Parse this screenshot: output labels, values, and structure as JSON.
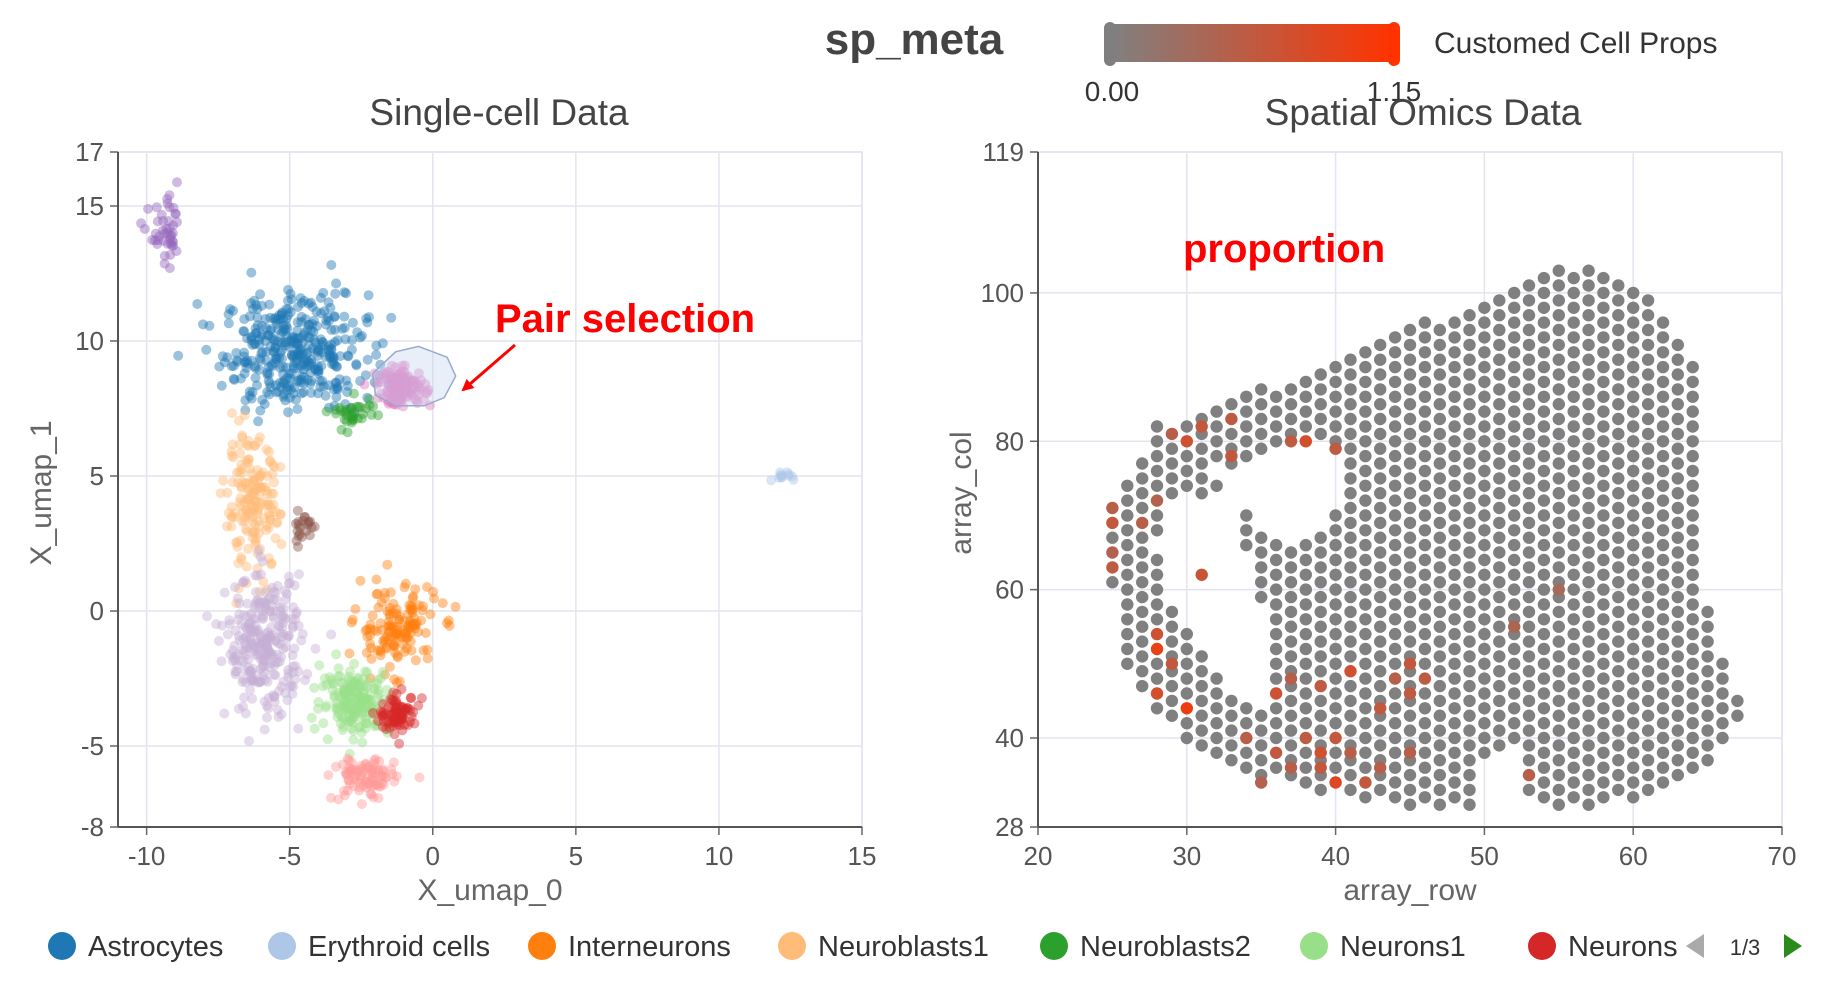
{
  "header": {
    "title": "sp_meta",
    "colorbar": {
      "min_label": "0.00",
      "max_label": "1.15",
      "label": "Customed Cell Props",
      "color_low": "#808080",
      "color_high": "#ff3300"
    }
  },
  "annotations": {
    "pair_selection": "Pair selection",
    "proportion": "proportion",
    "color": "#ff0000"
  },
  "legend": {
    "items": [
      {
        "label": "Astrocytes",
        "color": "#1f77b4"
      },
      {
        "label": "Erythroid cells",
        "color": "#aec7e8"
      },
      {
        "label": "Interneurons",
        "color": "#ff7f0e"
      },
      {
        "label": "Neuroblasts1",
        "color": "#ffbb78"
      },
      {
        "label": "Neuroblasts2",
        "color": "#2ca02c"
      },
      {
        "label": "Neurons1",
        "color": "#98df8a"
      },
      {
        "label": "Neurons",
        "color": "#d62728"
      }
    ],
    "page": "1/3",
    "prev_icon": "triangle-left-icon",
    "next_icon": "triangle-right-icon"
  },
  "chart_data": [
    {
      "type": "scatter",
      "title": "Single-cell Data",
      "xlabel": "X_umap_0",
      "ylabel": "X_umap_1",
      "xlim": [
        -11,
        15
      ],
      "ylim": [
        -8,
        17
      ],
      "xticks": [
        "-10",
        "-5",
        "0",
        "5",
        "10",
        "15"
      ],
      "yticks": [
        "-8",
        "-5",
        "0",
        "5",
        "10",
        "15",
        "17"
      ],
      "grid": true,
      "clusters": [
        {
          "name": "Astrocytes",
          "color": "#1f77b4",
          "center": [
            -4.8,
            9.6
          ],
          "spread": [
            2.1,
            1.8
          ],
          "n": 380
        },
        {
          "name": "Erythroid cells",
          "color": "#aec7e8",
          "center": [
            12.2,
            5.0
          ],
          "spread": [
            0.25,
            0.2
          ],
          "n": 12
        },
        {
          "name": "Interneurons",
          "color": "#ff7f0e",
          "center": [
            -1.3,
            -0.6
          ],
          "spread": [
            1.2,
            1.3
          ],
          "n": 140
        },
        {
          "name": "Neuroblasts1",
          "color": "#ffbb78",
          "center": [
            -6.3,
            3.9
          ],
          "spread": [
            0.8,
            2.0
          ],
          "n": 170
        },
        {
          "name": "Neuroblasts2",
          "color": "#2ca02c",
          "center": [
            -2.8,
            7.3
          ],
          "spread": [
            0.7,
            0.6
          ],
          "n": 35
        },
        {
          "name": "Neurons1",
          "color": "#98df8a",
          "center": [
            -2.7,
            -3.3
          ],
          "spread": [
            1.0,
            1.0
          ],
          "n": 180
        },
        {
          "name": "Neurons",
          "color": "#d62728",
          "center": [
            -1.2,
            -3.8
          ],
          "spread": [
            0.55,
            0.55
          ],
          "n": 90
        },
        {
          "name": "",
          "color": "#c5b0d5",
          "center": [
            -5.9,
            -1.3
          ],
          "spread": [
            1.1,
            2.1
          ],
          "n": 280
        },
        {
          "name": "",
          "color": "#9467bd",
          "center": [
            -9.3,
            13.9
          ],
          "spread": [
            0.5,
            1.0
          ],
          "n": 45
        },
        {
          "name": "",
          "color": "#8c564b",
          "center": [
            -4.5,
            3.1
          ],
          "spread": [
            0.4,
            0.6
          ],
          "n": 22
        },
        {
          "name": "",
          "color": "#ff9896",
          "center": [
            -2.4,
            -6.2
          ],
          "spread": [
            0.9,
            0.7
          ],
          "n": 90
        },
        {
          "name": "",
          "color": "#e377c2",
          "center": [
            -1.1,
            8.3
          ],
          "spread": [
            0.7,
            0.55
          ],
          "n": 140
        }
      ],
      "selection_lasso": [
        [
          -2.1,
          8.8
        ],
        [
          -1.3,
          9.6
        ],
        [
          -0.5,
          9.8
        ],
        [
          0.5,
          9.4
        ],
        [
          0.8,
          8.7
        ],
        [
          0.4,
          7.9
        ],
        [
          -0.3,
          7.6
        ],
        [
          -1.3,
          7.6
        ],
        [
          -2.0,
          8.0
        ]
      ]
    },
    {
      "type": "scatter",
      "title": "Spatial Omics Data",
      "xlabel": "array_row",
      "ylabel": "array_col",
      "xlim": [
        20,
        70
      ],
      "ylim": [
        28,
        119
      ],
      "xticks": [
        "20",
        "30",
        "40",
        "50",
        "60",
        "70"
      ],
      "yticks": [
        "28",
        "40",
        "60",
        "80",
        "100",
        "119"
      ],
      "grid": true,
      "color_range": [
        0,
        1.15
      ],
      "boundary_polygon": [
        [
          25,
          60
        ],
        [
          25,
          71
        ],
        [
          28,
          82
        ],
        [
          33,
          86
        ],
        [
          38,
          89
        ],
        [
          41,
          92
        ],
        [
          46,
          96
        ],
        [
          50,
          99
        ],
        [
          52,
          101
        ],
        [
          54,
          104
        ],
        [
          58,
          103
        ],
        [
          62,
          98
        ],
        [
          64,
          92
        ],
        [
          65,
          80
        ],
        [
          65,
          70
        ],
        [
          65,
          58
        ],
        [
          66,
          52
        ],
        [
          67.5,
          44
        ],
        [
          66,
          38
        ],
        [
          63,
          33
        ],
        [
          58,
          31
        ],
        [
          50,
          30
        ],
        [
          44,
          31
        ],
        [
          38,
          33
        ],
        [
          32,
          37
        ],
        [
          28,
          43
        ],
        [
          26,
          50
        ]
      ],
      "cavity_polygons": [
        [
          [
            29,
            73
          ],
          [
            28,
            66
          ],
          [
            29,
            59
          ],
          [
            31,
            52
          ],
          [
            33,
            46
          ],
          [
            35,
            43
          ],
          [
            36,
            50
          ],
          [
            35,
            58
          ],
          [
            34,
            66
          ],
          [
            33,
            72
          ]
        ],
        [
          [
            32,
            76
          ],
          [
            36,
            79
          ],
          [
            40,
            80
          ],
          [
            41,
            73
          ],
          [
            38,
            66
          ],
          [
            35,
            69
          ],
          [
            33,
            73
          ]
        ]
      ],
      "notch_polygon": [
        [
          52,
          40
        ],
        [
          53,
          32
        ],
        [
          55,
          28
        ],
        [
          53,
          27
        ],
        [
          50,
          29
        ],
        [
          50,
          36
        ]
      ],
      "high_spots": [
        {
          "x": 30,
          "y": 84,
          "v": 0.55
        },
        {
          "x": 31,
          "y": 82,
          "v": 0.6
        },
        {
          "x": 33,
          "y": 83,
          "v": 0.55
        },
        {
          "x": 30,
          "y": 80,
          "v": 0.7
        },
        {
          "x": 29,
          "y": 81,
          "v": 0.5
        },
        {
          "x": 33,
          "y": 78,
          "v": 0.6
        },
        {
          "x": 37,
          "y": 80,
          "v": 0.55
        },
        {
          "x": 38,
          "y": 80,
          "v": 0.75
        },
        {
          "x": 36,
          "y": 78,
          "v": 0.5
        },
        {
          "x": 40,
          "y": 79,
          "v": 0.55
        },
        {
          "x": 28,
          "y": 72,
          "v": 0.45
        },
        {
          "x": 27,
          "y": 69,
          "v": 0.5
        },
        {
          "x": 25,
          "y": 71,
          "v": 0.5
        },
        {
          "x": 25,
          "y": 69,
          "v": 0.6
        },
        {
          "x": 25,
          "y": 65,
          "v": 0.45
        },
        {
          "x": 25,
          "y": 63,
          "v": 0.55
        },
        {
          "x": 31,
          "y": 62,
          "v": 0.65
        },
        {
          "x": 28,
          "y": 54,
          "v": 0.7
        },
        {
          "x": 28,
          "y": 52,
          "v": 0.95
        },
        {
          "x": 29,
          "y": 50,
          "v": 0.6
        },
        {
          "x": 28,
          "y": 46,
          "v": 0.75
        },
        {
          "x": 30,
          "y": 44,
          "v": 1.0
        },
        {
          "x": 34,
          "y": 46,
          "v": 0.9
        },
        {
          "x": 36,
          "y": 46,
          "v": 0.7
        },
        {
          "x": 37,
          "y": 48,
          "v": 0.5
        },
        {
          "x": 39,
          "y": 47,
          "v": 0.55
        },
        {
          "x": 41,
          "y": 49,
          "v": 0.7
        },
        {
          "x": 44,
          "y": 48,
          "v": 0.5
        },
        {
          "x": 45,
          "y": 50,
          "v": 0.6
        },
        {
          "x": 46,
          "y": 48,
          "v": 0.55
        },
        {
          "x": 43,
          "y": 44,
          "v": 0.6
        },
        {
          "x": 45,
          "y": 46,
          "v": 0.55
        },
        {
          "x": 34,
          "y": 40,
          "v": 0.5
        },
        {
          "x": 36,
          "y": 38,
          "v": 0.6
        },
        {
          "x": 38,
          "y": 40,
          "v": 0.55
        },
        {
          "x": 40,
          "y": 40,
          "v": 0.6
        },
        {
          "x": 39,
          "y": 38,
          "v": 0.7
        },
        {
          "x": 41,
          "y": 38,
          "v": 0.5
        },
        {
          "x": 37,
          "y": 36,
          "v": 0.5
        },
        {
          "x": 39,
          "y": 36,
          "v": 0.6
        },
        {
          "x": 40,
          "y": 34,
          "v": 0.85
        },
        {
          "x": 42,
          "y": 34,
          "v": 0.6
        },
        {
          "x": 38,
          "y": 32,
          "v": 0.5
        },
        {
          "x": 43,
          "y": 36,
          "v": 0.5
        },
        {
          "x": 45,
          "y": 38,
          "v": 0.5
        },
        {
          "x": 35,
          "y": 34,
          "v": 0.45
        },
        {
          "x": 53,
          "y": 35,
          "v": 0.5
        },
        {
          "x": 52,
          "y": 55,
          "v": 0.4
        },
        {
          "x": 55,
          "y": 60,
          "v": 0.35
        }
      ]
    }
  ]
}
